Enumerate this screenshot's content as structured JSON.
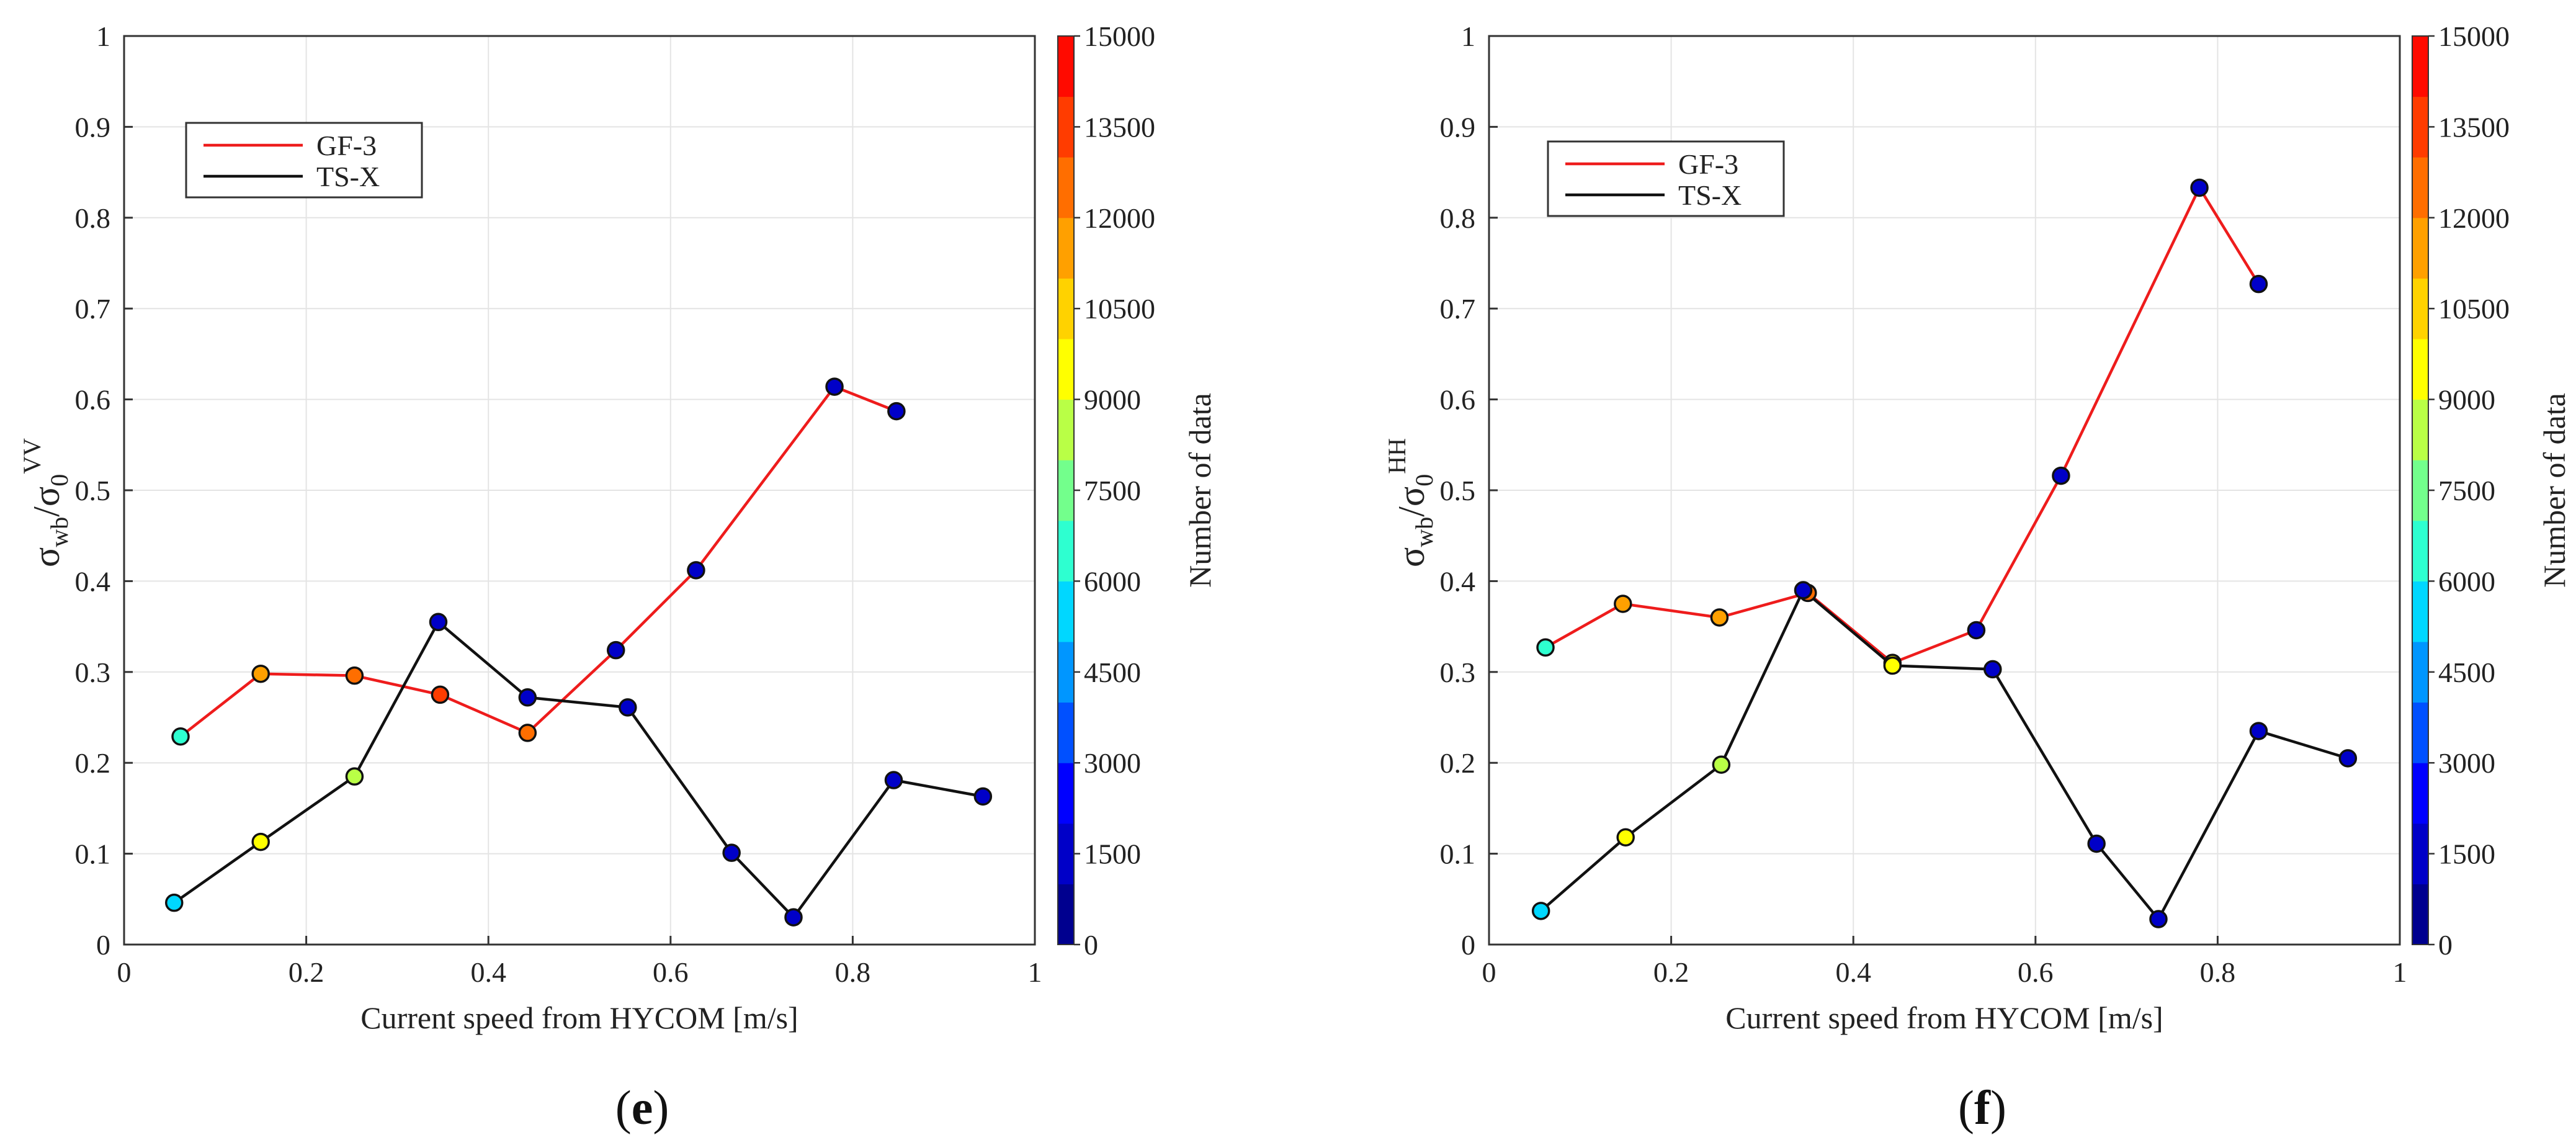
{
  "chart_data": [
    {
      "type": "line",
      "panel_label": "e",
      "xlabel": "Current speed from HYCOM [m/s]",
      "ylabel_main": "σ",
      "ylabel_sub": "wb",
      "ylabel_slash": "/σ",
      "ylabel_sub2": "0",
      "ylabel_sup": "VV",
      "xlim": [
        0,
        1
      ],
      "ylim": [
        0,
        1
      ],
      "x_ticks": [
        "0",
        "0.2",
        "0.4",
        "0.6",
        "0.8",
        "1"
      ],
      "y_ticks": [
        "0",
        "0.1",
        "0.2",
        "0.3",
        "0.4",
        "0.5",
        "0.6",
        "0.7",
        "0.8",
        "0.9",
        "1"
      ],
      "grid": true,
      "legend_position": "top-left",
      "colorbar": {
        "label": "Number of data",
        "range": [
          0,
          15000
        ],
        "ticks": [
          "0",
          "1500",
          "3000",
          "4500",
          "6000",
          "7500",
          "9000",
          "10500",
          "12000",
          "13500",
          "15000"
        ],
        "colors": [
          "#00008f",
          "#0000c8",
          "#0000ff",
          "#0050ff",
          "#0096ff",
          "#00d7ff",
          "#2effd0",
          "#73ff8c",
          "#b9ff46",
          "#ffff00",
          "#ffd200",
          "#ffa000",
          "#ff6e00",
          "#ff3c00",
          "#ff0a00"
        ]
      },
      "series": [
        {
          "name": "GF-3",
          "color": "#ee1c1c",
          "x": [
            0.062,
            0.15,
            0.253,
            0.347,
            0.443,
            0.54,
            0.628,
            0.78,
            0.848
          ],
          "y": [
            0.229,
            0.298,
            0.296,
            0.275,
            0.233,
            0.324,
            0.412,
            0.614,
            0.587
          ],
          "counts": [
            6500,
            11500,
            12000,
            13000,
            12500,
            1200,
            1200,
            1200,
            1200
          ]
        },
        {
          "name": "TS-X",
          "color": "#111111",
          "x": [
            0.055,
            0.15,
            0.253,
            0.345,
            0.443,
            0.553,
            0.667,
            0.735,
            0.845,
            0.943
          ],
          "y": [
            0.046,
            0.113,
            0.185,
            0.355,
            0.272,
            0.261,
            0.101,
            0.03,
            0.181,
            0.163
          ],
          "counts": [
            5200,
            9000,
            8000,
            1500,
            1300,
            1300,
            1300,
            1300,
            1300,
            1300
          ]
        }
      ]
    },
    {
      "type": "line",
      "panel_label": "f",
      "xlabel": "Current speed from HYCOM [m/s]",
      "ylabel_main": "σ",
      "ylabel_sub": "wb",
      "ylabel_slash": "/σ",
      "ylabel_sub2": "0",
      "ylabel_sup": "HH",
      "xlim": [
        0,
        1
      ],
      "ylim": [
        0,
        1
      ],
      "x_ticks": [
        "0",
        "0.2",
        "0.4",
        "0.6",
        "0.8",
        "1"
      ],
      "y_ticks": [
        "0",
        "0.1",
        "0.2",
        "0.3",
        "0.4",
        "0.5",
        "0.6",
        "0.7",
        "0.8",
        "0.9",
        "1"
      ],
      "grid": true,
      "legend_position": "top-left",
      "colorbar": {
        "label": "Number of data",
        "range": [
          0,
          15000
        ],
        "ticks": [
          "0",
          "1500",
          "3000",
          "4500",
          "6000",
          "7500",
          "9000",
          "10500",
          "12000",
          "13500",
          "15000"
        ],
        "colors": [
          "#00008f",
          "#0000c8",
          "#0000ff",
          "#0050ff",
          "#0096ff",
          "#00d7ff",
          "#2effd0",
          "#73ff8c",
          "#b9ff46",
          "#ffff00",
          "#ffd200",
          "#ffa000",
          "#ff6e00",
          "#ff3c00",
          "#ff0a00"
        ]
      },
      "series": [
        {
          "name": "GF-3",
          "color": "#ee1c1c",
          "x": [
            0.062,
            0.147,
            0.253,
            0.35,
            0.443,
            0.535,
            0.628,
            0.78,
            0.845
          ],
          "y": [
            0.327,
            0.375,
            0.36,
            0.387,
            0.31,
            0.346,
            0.516,
            0.833,
            0.727
          ],
          "counts": [
            6500,
            11500,
            11500,
            12500,
            9000,
            1200,
            1200,
            1200,
            1200
          ]
        },
        {
          "name": "TS-X",
          "color": "#111111",
          "x": [
            0.057,
            0.15,
            0.255,
            0.345,
            0.443,
            0.553,
            0.667,
            0.735,
            0.845,
            0.943
          ],
          "y": [
            0.037,
            0.118,
            0.198,
            0.39,
            0.307,
            0.303,
            0.111,
            0.028,
            0.235,
            0.205
          ],
          "counts": [
            5200,
            9000,
            8000,
            1500,
            9000,
            1300,
            1300,
            1300,
            1300,
            1300
          ]
        }
      ]
    }
  ]
}
